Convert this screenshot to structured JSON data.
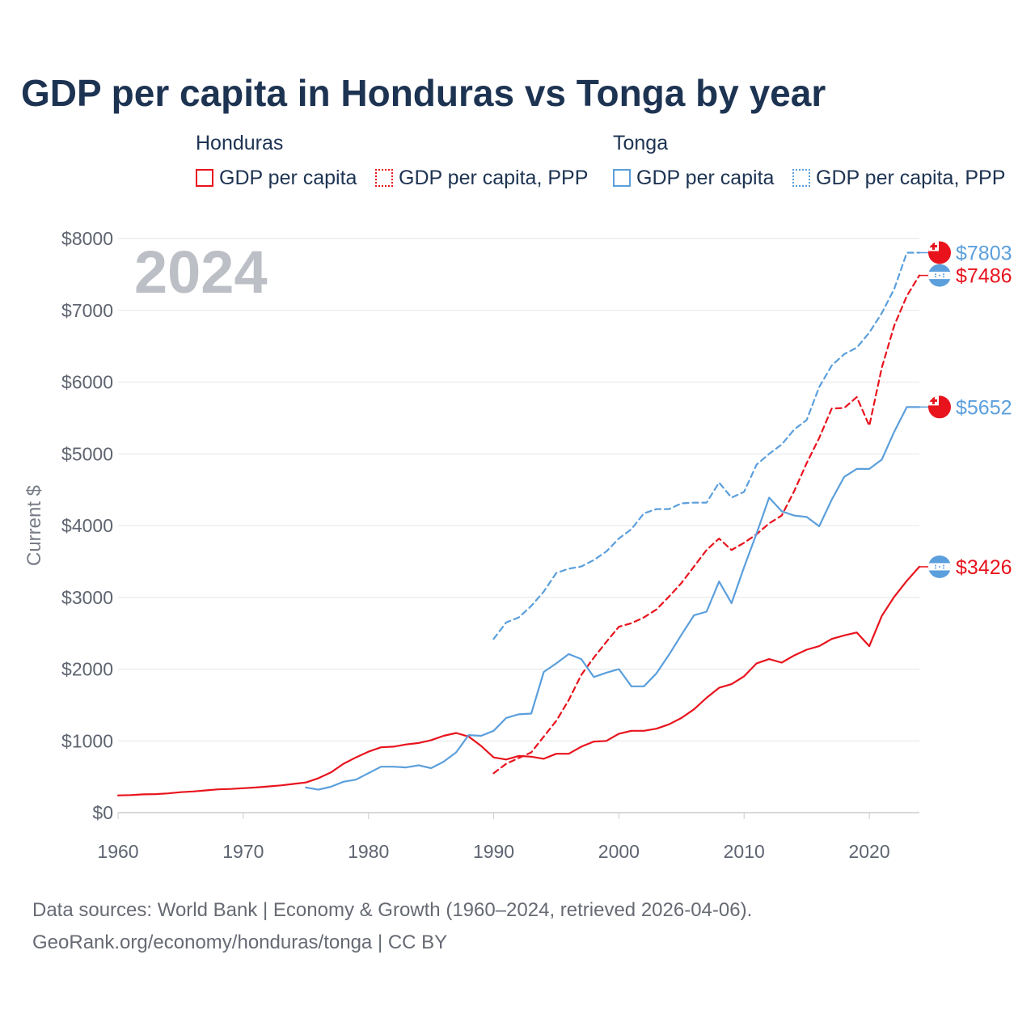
{
  "title": "GDP per capita in Honduras vs Tonga by year",
  "legend": {
    "groups": [
      {
        "name": "Honduras",
        "items": [
          "GDP per capita",
          "GDP per capita, PPP"
        ]
      },
      {
        "name": "Tonga",
        "items": [
          "GDP per capita",
          "GDP per capita, PPP"
        ]
      }
    ]
  },
  "source_lines": [
    "Data sources: World Bank | Economy & Growth (1960–2024, retrieved 2026-04-06).",
    "GeoRank.org/economy/honduras/tonga | CC BY"
  ],
  "colors": {
    "honduras": "#e8131d",
    "tonga": "#5b9fdc",
    "grid": "#e6e6e6",
    "axis": "#cccccc"
  },
  "chart_data": {
    "type": "line",
    "title": "GDP per capita in Honduras vs Tonga by year",
    "year_label": "2024",
    "xlabel": "",
    "ylabel": "Current $",
    "xlim": [
      1960,
      2024
    ],
    "ylim": [
      0,
      8000
    ],
    "x_ticks": [
      1960,
      1970,
      1980,
      1990,
      2000,
      2010,
      2020
    ],
    "y_ticks": [
      0,
      1000,
      2000,
      3000,
      4000,
      5000,
      6000,
      7000,
      8000
    ],
    "y_tick_labels": [
      "$0",
      "$1000",
      "$2000",
      "$3000",
      "$4000",
      "$5000",
      "$6000",
      "$7000",
      "$8000"
    ],
    "grid": true,
    "series": [
      {
        "name": "Honduras GDP per capita",
        "country": "honduras",
        "style": "solid",
        "end_label": "$3426",
        "flag": "honduras",
        "x": [
          1960,
          1961,
          1962,
          1963,
          1964,
          1965,
          1966,
          1967,
          1968,
          1969,
          1970,
          1971,
          1972,
          1973,
          1974,
          1975,
          1976,
          1977,
          1978,
          1979,
          1980,
          1981,
          1982,
          1983,
          1984,
          1985,
          1986,
          1987,
          1988,
          1989,
          1990,
          1991,
          1992,
          1993,
          1994,
          1995,
          1996,
          1997,
          1998,
          1999,
          2000,
          2001,
          2002,
          2003,
          2004,
          2005,
          2006,
          2007,
          2008,
          2009,
          2010,
          2011,
          2012,
          2013,
          2014,
          2015,
          2016,
          2017,
          2018,
          2019,
          2020,
          2021,
          2022,
          2023,
          2024
        ],
        "values": [
          240,
          245,
          255,
          258,
          268,
          285,
          295,
          310,
          325,
          330,
          340,
          350,
          365,
          380,
          400,
          420,
          480,
          560,
          680,
          770,
          850,
          910,
          920,
          950,
          970,
          1010,
          1070,
          1110,
          1060,
          930,
          770,
          740,
          790,
          780,
          750,
          820,
          820,
          920,
          990,
          1000,
          1100,
          1140,
          1140,
          1170,
          1230,
          1320,
          1440,
          1600,
          1740,
          1790,
          1900,
          2080,
          2140,
          2090,
          2190,
          2270,
          2320,
          2420,
          2470,
          2510,
          2320,
          2740,
          3010,
          3230,
          3426
        ]
      },
      {
        "name": "Honduras GDP per capita, PPP",
        "country": "honduras",
        "style": "dashed",
        "end_label": "$7486",
        "flag": "honduras",
        "x": [
          1990,
          1991,
          1992,
          1993,
          1994,
          1995,
          1996,
          1997,
          1998,
          1999,
          2000,
          2001,
          2002,
          2003,
          2004,
          2005,
          2006,
          2007,
          2008,
          2009,
          2010,
          2011,
          2012,
          2013,
          2014,
          2015,
          2016,
          2017,
          2018,
          2019,
          2020,
          2021,
          2022,
          2023,
          2024
        ],
        "values": [
          550,
          680,
          760,
          840,
          1060,
          1280,
          1570,
          1920,
          2160,
          2380,
          2590,
          2640,
          2720,
          2830,
          3010,
          3200,
          3430,
          3660,
          3820,
          3660,
          3760,
          3880,
          4030,
          4140,
          4480,
          4870,
          5220,
          5630,
          5640,
          5790,
          5390,
          6200,
          6790,
          7200,
          7486
        ]
      },
      {
        "name": "Tonga GDP per capita",
        "country": "tonga",
        "style": "solid",
        "end_label": "$5652",
        "flag": "tonga",
        "x": [
          1975,
          1976,
          1977,
          1978,
          1979,
          1980,
          1981,
          1982,
          1983,
          1984,
          1985,
          1986,
          1987,
          1988,
          1989,
          1990,
          1991,
          1992,
          1993,
          1994,
          1995,
          1996,
          1997,
          1998,
          1999,
          2000,
          2001,
          2002,
          2003,
          2004,
          2005,
          2006,
          2007,
          2008,
          2009,
          2010,
          2011,
          2012,
          2013,
          2014,
          2015,
          2016,
          2017,
          2018,
          2019,
          2020,
          2021,
          2022,
          2023,
          2024
        ],
        "values": [
          350,
          320,
          360,
          430,
          460,
          550,
          640,
          640,
          630,
          660,
          620,
          710,
          840,
          1080,
          1070,
          1140,
          1320,
          1370,
          1380,
          1960,
          2080,
          2210,
          2140,
          1890,
          1950,
          2000,
          1760,
          1760,
          1940,
          2200,
          2480,
          2750,
          2800,
          3220,
          2920,
          3420,
          3890,
          4390,
          4200,
          4140,
          4120,
          3990,
          4360,
          4680,
          4790,
          4790,
          4920,
          5310,
          5652,
          5652
        ]
      },
      {
        "name": "Tonga GDP per capita, PPP",
        "country": "tonga",
        "style": "dashed",
        "end_label": "$7803",
        "flag": "tonga",
        "x": [
          1990,
          1991,
          1992,
          1993,
          1994,
          1995,
          1996,
          1997,
          1998,
          1999,
          2000,
          2001,
          2002,
          2003,
          2004,
          2005,
          2006,
          2007,
          2008,
          2009,
          2010,
          2011,
          2012,
          2013,
          2014,
          2015,
          2016,
          2017,
          2018,
          2019,
          2020,
          2021,
          2022,
          2023,
          2024
        ],
        "values": [
          2420,
          2650,
          2720,
          2880,
          3080,
          3340,
          3400,
          3430,
          3520,
          3640,
          3820,
          3950,
          4170,
          4230,
          4230,
          4310,
          4320,
          4320,
          4600,
          4390,
          4470,
          4850,
          5000,
          5130,
          5340,
          5470,
          5930,
          6230,
          6390,
          6480,
          6690,
          6960,
          7300,
          7803,
          7803
        ]
      }
    ]
  }
}
